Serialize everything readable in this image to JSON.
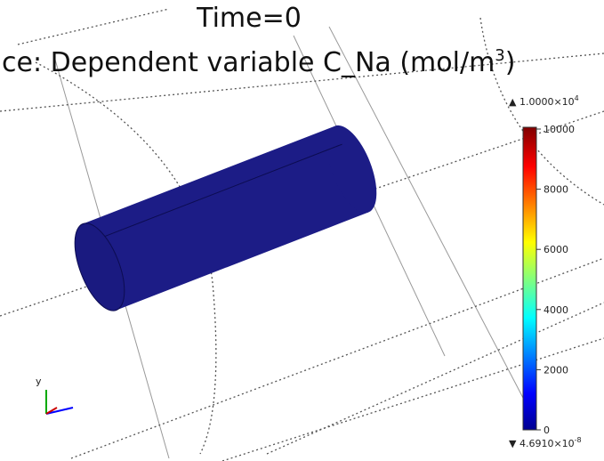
{
  "title": "Time=0",
  "subtitle": {
    "text": "ce: Dependent variable C_Na (mol/m",
    "sup": "3",
    "close": ")"
  },
  "colorbar": {
    "max_label": "1.0000×10",
    "max_exp": "4",
    "min_label": "4.6910×10",
    "min_exp": "-8",
    "clim": [
      0,
      10000
    ],
    "ticks": [
      0,
      2000,
      4000,
      6000,
      8000,
      10000
    ]
  },
  "axes": {
    "y": "y"
  }
}
